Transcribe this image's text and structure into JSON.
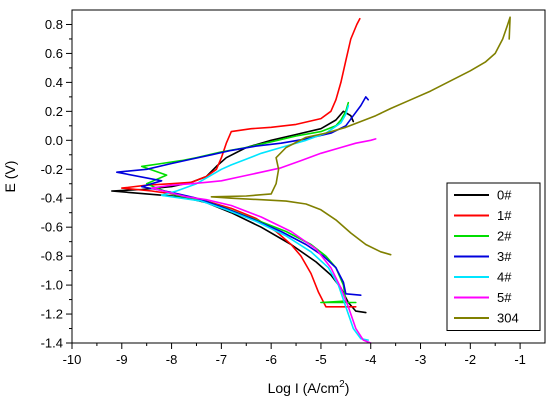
{
  "chart_data": {
    "type": "line",
    "title": "",
    "xlabel": "Log I (A/cm",
    "xlabel_sup": "2",
    "xlabel_tail": ")",
    "ylabel": "E (V)",
    "xlim": [
      -10,
      -0.5
    ],
    "ylim": [
      -1.4,
      0.9
    ],
    "xticks": [
      -10,
      -9,
      -8,
      -7,
      -6,
      -5,
      -4,
      -3,
      -2,
      -1
    ],
    "yticks": [
      -1.4,
      -1.2,
      -1.0,
      -0.8,
      -0.6,
      -0.4,
      -0.2,
      0.0,
      0.2,
      0.4,
      0.6,
      0.8
    ],
    "xtick_labels": [
      "-10",
      "-9",
      "-8",
      "-7",
      "-6",
      "-5",
      "-4",
      "-3",
      "-2",
      "-1"
    ],
    "ytick_labels": [
      "-1.4",
      "-1.2",
      "-1.0",
      "-0.8",
      "-0.6",
      "-0.4",
      "-0.2",
      "0.0",
      "0.2",
      "0.4",
      "0.6",
      "0.8"
    ],
    "grid": false,
    "legend_position": "bottom-right",
    "series": [
      {
        "name": "0#",
        "color": "#000000",
        "points": [
          [
            -4.1,
            -1.19
          ],
          [
            -4.3,
            -1.18
          ],
          [
            -4.45,
            -1.12
          ],
          [
            -4.6,
            -1.02
          ],
          [
            -4.8,
            -0.93
          ],
          [
            -5.1,
            -0.84
          ],
          [
            -5.6,
            -0.72
          ],
          [
            -6.2,
            -0.6
          ],
          [
            -6.8,
            -0.5
          ],
          [
            -7.3,
            -0.43
          ],
          [
            -7.8,
            -0.39
          ],
          [
            -8.5,
            -0.37
          ],
          [
            -9.2,
            -0.35
          ],
          [
            -8.6,
            -0.34
          ],
          [
            -8.0,
            -0.32
          ],
          [
            -7.6,
            -0.29
          ],
          [
            -7.3,
            -0.25
          ],
          [
            -7.1,
            -0.18
          ],
          [
            -6.9,
            -0.12
          ],
          [
            -6.5,
            -0.05
          ],
          [
            -6.0,
            0.0
          ],
          [
            -5.5,
            0.04
          ],
          [
            -5.0,
            0.08
          ],
          [
            -4.7,
            0.14
          ],
          [
            -4.55,
            0.2
          ],
          [
            -4.4,
            0.17
          ],
          [
            -4.35,
            0.13
          ]
        ]
      },
      {
        "name": "1#",
        "color": "#ff0000",
        "points": [
          [
            -4.3,
            -1.15
          ],
          [
            -4.9,
            -1.15
          ],
          [
            -5.05,
            -1.05
          ],
          [
            -5.2,
            -0.92
          ],
          [
            -5.4,
            -0.8
          ],
          [
            -5.6,
            -0.72
          ],
          [
            -5.9,
            -0.63
          ],
          [
            -6.3,
            -0.54
          ],
          [
            -6.8,
            -0.47
          ],
          [
            -7.3,
            -0.42
          ],
          [
            -7.8,
            -0.38
          ],
          [
            -8.4,
            -0.35
          ],
          [
            -9.0,
            -0.33
          ],
          [
            -8.5,
            -0.31
          ],
          [
            -8.0,
            -0.3
          ],
          [
            -7.6,
            -0.29
          ],
          [
            -7.3,
            -0.25
          ],
          [
            -7.1,
            -0.2
          ],
          [
            -7.0,
            -0.12
          ],
          [
            -6.9,
            -0.02
          ],
          [
            -6.8,
            0.06
          ],
          [
            -6.4,
            0.08
          ],
          [
            -6.0,
            0.09
          ],
          [
            -5.5,
            0.11
          ],
          [
            -5.0,
            0.15
          ],
          [
            -4.8,
            0.2
          ],
          [
            -4.7,
            0.28
          ],
          [
            -4.6,
            0.4
          ],
          [
            -4.5,
            0.55
          ],
          [
            -4.4,
            0.7
          ],
          [
            -4.28,
            0.8
          ],
          [
            -4.22,
            0.84
          ]
        ]
      },
      {
        "name": "2#",
        "color": "#00dd00",
        "points": [
          [
            -4.3,
            -1.12
          ],
          [
            -5.0,
            -1.12
          ],
          [
            -4.5,
            -1.11
          ],
          [
            -4.55,
            -1.0
          ],
          [
            -4.7,
            -0.88
          ],
          [
            -4.9,
            -0.8
          ],
          [
            -5.2,
            -0.72
          ],
          [
            -5.7,
            -0.63
          ],
          [
            -6.3,
            -0.55
          ],
          [
            -6.9,
            -0.47
          ],
          [
            -7.4,
            -0.41
          ],
          [
            -7.9,
            -0.38
          ],
          [
            -8.3,
            -0.33
          ],
          [
            -8.5,
            -0.3
          ],
          [
            -8.1,
            -0.24
          ],
          [
            -8.6,
            -0.18
          ],
          [
            -8.2,
            -0.16
          ],
          [
            -7.8,
            -0.14
          ],
          [
            -7.5,
            -0.12
          ],
          [
            -7.0,
            -0.08
          ],
          [
            -6.5,
            -0.05
          ],
          [
            -6.0,
            -0.01
          ],
          [
            -5.5,
            0.03
          ],
          [
            -5.0,
            0.06
          ],
          [
            -4.7,
            0.1
          ],
          [
            -4.6,
            0.14
          ],
          [
            -4.5,
            0.2
          ],
          [
            -4.45,
            0.26
          ]
        ]
      },
      {
        "name": "3#",
        "color": "#0000dd",
        "points": [
          [
            -4.2,
            -1.07
          ],
          [
            -4.5,
            -1.06
          ],
          [
            -4.55,
            -0.98
          ],
          [
            -4.7,
            -0.88
          ],
          [
            -4.95,
            -0.8
          ],
          [
            -5.3,
            -0.72
          ],
          [
            -5.8,
            -0.63
          ],
          [
            -6.4,
            -0.54
          ],
          [
            -7.0,
            -0.46
          ],
          [
            -7.5,
            -0.4
          ],
          [
            -8.0,
            -0.36
          ],
          [
            -8.6,
            -0.32
          ],
          [
            -8.2,
            -0.28
          ],
          [
            -9.1,
            -0.22
          ],
          [
            -8.5,
            -0.2
          ],
          [
            -8.0,
            -0.16
          ],
          [
            -7.6,
            -0.13
          ],
          [
            -7.2,
            -0.1
          ],
          [
            -6.8,
            -0.07
          ],
          [
            -6.3,
            -0.04
          ],
          [
            -5.8,
            -0.02
          ],
          [
            -5.3,
            0.01
          ],
          [
            -4.8,
            0.05
          ],
          [
            -4.5,
            0.1
          ],
          [
            -4.35,
            0.17
          ],
          [
            -4.2,
            0.24
          ],
          [
            -4.1,
            0.3
          ],
          [
            -4.05,
            0.28
          ]
        ]
      },
      {
        "name": "4#",
        "color": "#00e5ff",
        "points": [
          [
            -4.05,
            -1.38
          ],
          [
            -4.2,
            -1.37
          ],
          [
            -4.35,
            -1.3
          ],
          [
            -4.5,
            -1.15
          ],
          [
            -4.65,
            -1.0
          ],
          [
            -4.85,
            -0.88
          ],
          [
            -5.2,
            -0.77
          ],
          [
            -5.7,
            -0.66
          ],
          [
            -6.3,
            -0.56
          ],
          [
            -6.9,
            -0.48
          ],
          [
            -7.4,
            -0.42
          ],
          [
            -7.8,
            -0.4
          ],
          [
            -8.2,
            -0.38
          ],
          [
            -7.9,
            -0.35
          ],
          [
            -7.5,
            -0.3
          ],
          [
            -7.2,
            -0.24
          ],
          [
            -7.0,
            -0.2
          ],
          [
            -6.8,
            -0.17
          ],
          [
            -6.5,
            -0.13
          ],
          [
            -6.2,
            -0.09
          ],
          [
            -5.8,
            -0.05
          ],
          [
            -5.3,
            0.0
          ],
          [
            -4.9,
            0.05
          ],
          [
            -4.6,
            0.12
          ],
          [
            -4.5,
            0.18
          ],
          [
            -4.45,
            0.24
          ]
        ]
      },
      {
        "name": "5#",
        "color": "#ff00ff",
        "points": [
          [
            -4.0,
            -1.4
          ],
          [
            -4.15,
            -1.38
          ],
          [
            -4.3,
            -1.3
          ],
          [
            -4.45,
            -1.15
          ],
          [
            -4.6,
            -1.02
          ],
          [
            -4.8,
            -0.88
          ],
          [
            -5.1,
            -0.75
          ],
          [
            -5.6,
            -0.63
          ],
          [
            -6.2,
            -0.53
          ],
          [
            -6.8,
            -0.45
          ],
          [
            -7.3,
            -0.41
          ],
          [
            -7.7,
            -0.39
          ],
          [
            -8.4,
            -0.33
          ],
          [
            -8.0,
            -0.31
          ],
          [
            -7.6,
            -0.3
          ],
          [
            -7.3,
            -0.29
          ],
          [
            -7.0,
            -0.28
          ],
          [
            -6.6,
            -0.25
          ],
          [
            -6.2,
            -0.22
          ],
          [
            -5.8,
            -0.19
          ],
          [
            -5.4,
            -0.14
          ],
          [
            -5.0,
            -0.09
          ],
          [
            -4.6,
            -0.05
          ],
          [
            -4.3,
            -0.02
          ],
          [
            -4.0,
            0.0
          ],
          [
            -3.9,
            0.01
          ]
        ]
      },
      {
        "name": "304",
        "color": "#808000",
        "points": [
          [
            -3.6,
            -0.79
          ],
          [
            -3.8,
            -0.77
          ],
          [
            -4.1,
            -0.72
          ],
          [
            -4.4,
            -0.64
          ],
          [
            -4.7,
            -0.55
          ],
          [
            -5.0,
            -0.48
          ],
          [
            -5.3,
            -0.44
          ],
          [
            -5.7,
            -0.42
          ],
          [
            -6.2,
            -0.41
          ],
          [
            -6.8,
            -0.4
          ],
          [
            -7.2,
            -0.39
          ],
          [
            -6.5,
            -0.385
          ],
          [
            -6.0,
            -0.37
          ],
          [
            -5.9,
            -0.3
          ],
          [
            -5.85,
            -0.2
          ],
          [
            -5.9,
            -0.12
          ],
          [
            -5.7,
            -0.05
          ],
          [
            -5.3,
            0.02
          ],
          [
            -4.9,
            0.05
          ],
          [
            -4.5,
            0.09
          ],
          [
            -4.2,
            0.13
          ],
          [
            -3.9,
            0.17
          ],
          [
            -3.6,
            0.22
          ],
          [
            -3.2,
            0.28
          ],
          [
            -2.8,
            0.34
          ],
          [
            -2.4,
            0.41
          ],
          [
            -2.0,
            0.48
          ],
          [
            -1.7,
            0.54
          ],
          [
            -1.5,
            0.6
          ],
          [
            -1.35,
            0.7
          ],
          [
            -1.25,
            0.8
          ],
          [
            -1.2,
            0.85
          ],
          [
            -1.22,
            0.7
          ]
        ]
      }
    ]
  }
}
